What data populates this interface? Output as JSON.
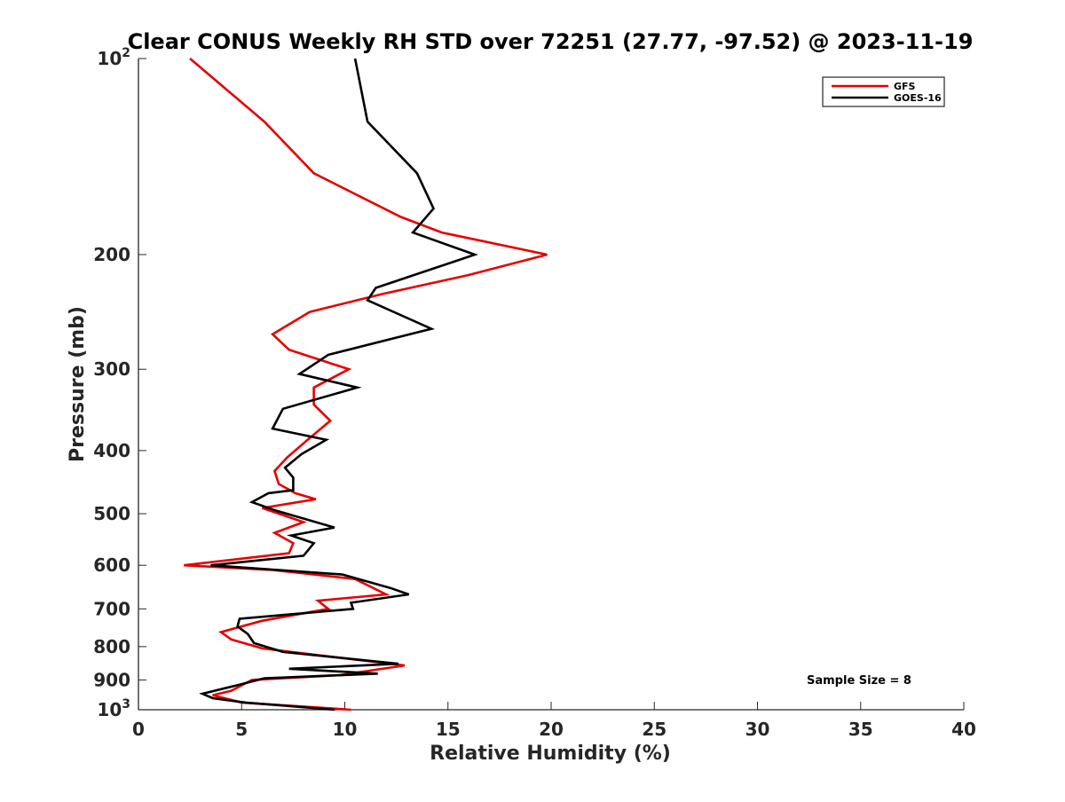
{
  "chart_data": {
    "type": "line",
    "title": "Clear CONUS Weekly RH STD over 72251 (27.77, -97.52) @ 2023-11-19",
    "xlabel": "Relative Humidity (%)",
    "ylabel": "Pressure (mb)",
    "xlim": [
      0,
      40
    ],
    "ylim": [
      1000,
      100
    ],
    "yscale": "log",
    "y_inverted": true,
    "grid": false,
    "legend_position": "top-right",
    "x_ticks": [
      0,
      5,
      10,
      15,
      20,
      25,
      30,
      35,
      40
    ],
    "x_tick_labels": [
      "0",
      "5",
      "10",
      "15",
      "20",
      "25",
      "30",
      "35",
      "40"
    ],
    "y_ticks": [
      1000,
      900,
      800,
      700,
      600,
      500,
      400,
      300,
      200,
      100
    ],
    "y_tick_labels": [
      {
        "base": "10",
        "exp": "3"
      },
      {
        "base": "900",
        "exp": ""
      },
      {
        "base": "800",
        "exp": ""
      },
      {
        "base": "700",
        "exp": ""
      },
      {
        "base": "600",
        "exp": ""
      },
      {
        "base": "500",
        "exp": ""
      },
      {
        "base": "400",
        "exp": ""
      },
      {
        "base": "300",
        "exp": ""
      },
      {
        "base": "200",
        "exp": ""
      },
      {
        "base": "10",
        "exp": "2"
      }
    ],
    "annotation": "Sample Size = 8",
    "series": [
      {
        "name": "GFS",
        "color": "#e60000",
        "points": [
          [
            2.5,
            100
          ],
          [
            6.1,
            125
          ],
          [
            8.5,
            150
          ],
          [
            12.7,
            175
          ],
          [
            14.7,
            185
          ],
          [
            19.8,
            200
          ],
          [
            16.0,
            215
          ],
          [
            11.8,
            230
          ],
          [
            8.3,
            245
          ],
          [
            6.5,
            265
          ],
          [
            7.3,
            280
          ],
          [
            10.2,
            300
          ],
          [
            8.5,
            320
          ],
          [
            8.5,
            340
          ],
          [
            9.3,
            360
          ],
          [
            8.2,
            385
          ],
          [
            7.2,
            410
          ],
          [
            6.6,
            430
          ],
          [
            6.8,
            450
          ],
          [
            7.6,
            465
          ],
          [
            8.6,
            475
          ],
          [
            6.0,
            490
          ],
          [
            8.0,
            515
          ],
          [
            6.6,
            535
          ],
          [
            7.5,
            555
          ],
          [
            7.3,
            575
          ],
          [
            2.2,
            600
          ],
          [
            6.5,
            610
          ],
          [
            10.5,
            630
          ],
          [
            12.0,
            665
          ],
          [
            8.7,
            680
          ],
          [
            9.2,
            700
          ],
          [
            6.0,
            730
          ],
          [
            4.0,
            760
          ],
          [
            4.5,
            780
          ],
          [
            6.0,
            805
          ],
          [
            12.9,
            855
          ],
          [
            9.7,
            885
          ],
          [
            5.5,
            900
          ],
          [
            4.5,
            935
          ],
          [
            3.6,
            950
          ],
          [
            5.0,
            975
          ],
          [
            10.3,
            1000
          ]
        ]
      },
      {
        "name": "GOES-16",
        "color": "#000000",
        "points": [
          [
            10.5,
            100
          ],
          [
            11.1,
            125
          ],
          [
            13.5,
            150
          ],
          [
            14.3,
            170
          ],
          [
            13.3,
            185
          ],
          [
            16.3,
            200
          ],
          [
            11.5,
            225
          ],
          [
            11.1,
            235
          ],
          [
            14.2,
            260
          ],
          [
            9.2,
            285
          ],
          [
            7.8,
            305
          ],
          [
            10.6,
            320
          ],
          [
            7.0,
            345
          ],
          [
            6.5,
            370
          ],
          [
            9.1,
            385
          ],
          [
            7.9,
            405
          ],
          [
            7.1,
            425
          ],
          [
            7.5,
            440
          ],
          [
            7.5,
            460
          ],
          [
            6.3,
            465
          ],
          [
            5.5,
            480
          ],
          [
            6.7,
            495
          ],
          [
            9.5,
            525
          ],
          [
            7.4,
            540
          ],
          [
            8.5,
            555
          ],
          [
            8.0,
            580
          ],
          [
            3.5,
            600
          ],
          [
            9.9,
            620
          ],
          [
            12.2,
            650
          ],
          [
            13.1,
            665
          ],
          [
            10.3,
            685
          ],
          [
            10.4,
            700
          ],
          [
            4.9,
            725
          ],
          [
            4.8,
            745
          ],
          [
            5.3,
            765
          ],
          [
            5.6,
            790
          ],
          [
            7.0,
            815
          ],
          [
            12.6,
            850
          ],
          [
            7.3,
            865
          ],
          [
            11.6,
            880
          ],
          [
            6.1,
            895
          ],
          [
            4.9,
            915
          ],
          [
            3.1,
            945
          ],
          [
            3.6,
            960
          ],
          [
            5.2,
            975
          ],
          [
            9.5,
            1000
          ]
        ]
      }
    ]
  }
}
